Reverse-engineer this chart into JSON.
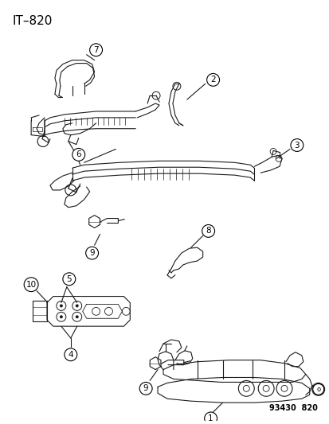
{
  "title": "IT–820",
  "footer": "93430  820",
  "bg_color": "#ffffff",
  "lc": "#1a1a1a",
  "lw": 0.8,
  "fig_w": 4.14,
  "fig_h": 5.33,
  "dpi": 100,
  "label_r": 8,
  "label_fs": 7.5,
  "title_fs": 11,
  "footer_fs": 7
}
